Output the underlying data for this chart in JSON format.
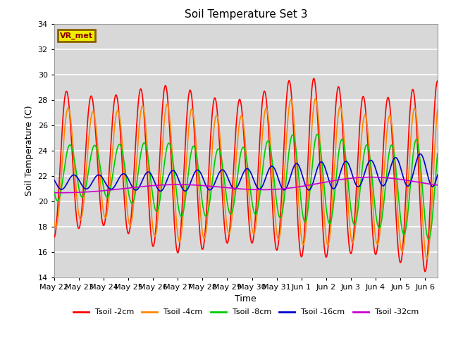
{
  "title": "Soil Temperature Set 3",
  "xlabel": "Time",
  "ylabel": "Soil Temperature (C)",
  "ylim": [
    14,
    34
  ],
  "yticks": [
    14,
    16,
    18,
    20,
    22,
    24,
    26,
    28,
    30,
    32,
    34
  ],
  "bg_color": "#d8d8d8",
  "fig_color": "#ffffff",
  "grid_color": "#ffffff",
  "annotation_text": "VR_met",
  "annotation_bg": "#eeee00",
  "annotation_border": "#8B6000",
  "lines": [
    {
      "label": "Tsoil -2cm",
      "color": "#ff0000",
      "lw": 1.2
    },
    {
      "label": "Tsoil -4cm",
      "color": "#ff8800",
      "lw": 1.2
    },
    {
      "label": "Tsoil -8cm",
      "color": "#00cc00",
      "lw": 1.2
    },
    {
      "label": "Tsoil -16cm",
      "color": "#0000cc",
      "lw": 1.2
    },
    {
      "label": "Tsoil -32cm",
      "color": "#cc00cc",
      "lw": 1.2
    }
  ],
  "xtick_labels": [
    "May 22",
    "May 23",
    "May 24",
    "May 25",
    "May 26",
    "May 27",
    "May 28",
    "May 29",
    "May 30",
    "May 31",
    "Jun 1",
    "Jun 2",
    "Jun 3",
    "Jun 4",
    "Jun 5",
    "Jun 6"
  ],
  "num_days": 15.5,
  "points_per_day": 96
}
